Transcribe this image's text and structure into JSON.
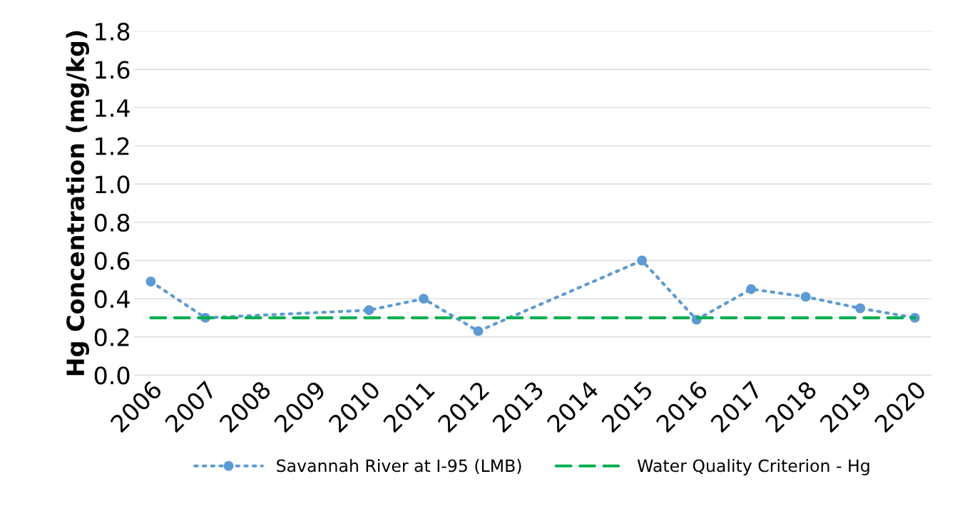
{
  "chart_data": {
    "type": "line",
    "ylabel": "Hg Concentration (mg/kg)",
    "categories": [
      "2006",
      "2007",
      "2008",
      "2009",
      "2010",
      "2011",
      "2012",
      "2013",
      "2014",
      "2015",
      "2016",
      "2017",
      "2018",
      "2019",
      "2020"
    ],
    "series": [
      {
        "name": "Savannah River at I-95 (LMB)",
        "color": "#5b9bd5",
        "marker": "circle",
        "line_style": "dotted",
        "values": [
          0.49,
          0.3,
          null,
          null,
          0.34,
          0.4,
          0.23,
          null,
          null,
          0.6,
          0.29,
          0.45,
          0.41,
          0.35,
          0.3
        ]
      },
      {
        "name": "Water Quality Criterion - Hg",
        "color": "#00b050",
        "marker": "none",
        "line_style": "dashed",
        "values": [
          0.3,
          0.3,
          0.3,
          0.3,
          0.3,
          0.3,
          0.3,
          0.3,
          0.3,
          0.3,
          0.3,
          0.3,
          0.3,
          0.3,
          0.3
        ]
      }
    ],
    "ylim": [
      0,
      1.8
    ],
    "yticks": [
      {
        "value": 0,
        "label": "0.0"
      },
      {
        "value": 0.2,
        "label": "0.2"
      },
      {
        "value": 0.4,
        "label": "0.4"
      },
      {
        "value": 0.6,
        "label": "0.6"
      },
      {
        "value": 0.8,
        "label": "0.8"
      },
      {
        "value": 1.0,
        "label": "1.0"
      },
      {
        "value": 1.2,
        "label": "1.2"
      },
      {
        "value": 1.4,
        "label": "1.4"
      },
      {
        "value": 1.6,
        "label": "1.6"
      },
      {
        "value": 1.8,
        "label": "1.8"
      }
    ],
    "grid": "y",
    "legend": "bottom"
  }
}
